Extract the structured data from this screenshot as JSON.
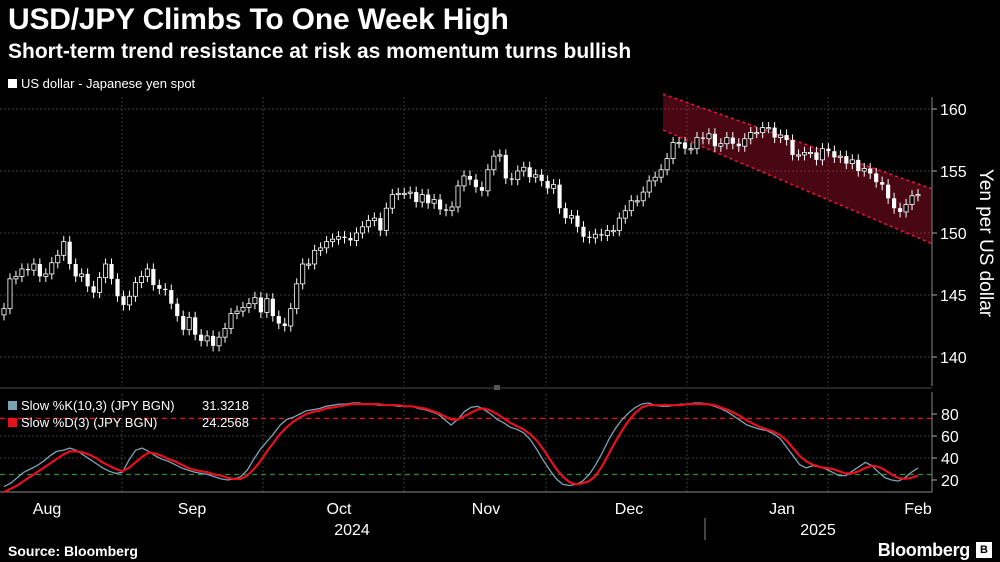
{
  "title": "USD/JPY Climbs To One Week High",
  "subtitle": "Short-term trend resistance at risk as momentum turns bullish",
  "footer": {
    "source": "Source: Bloomberg",
    "brand": "Bloomberg"
  },
  "colors": {
    "background": "#000000",
    "up_candle": "#ffffff",
    "down_candle": "#ffffff",
    "channel": "#e0163a",
    "stoch_k": "#7aa3b5",
    "stoch_d": "#e8101f",
    "level_80": "#e8101f",
    "level_20": "#2e8b2e",
    "grid": "#3a3a3a"
  },
  "chart_data": [
    {
      "type": "candlestick",
      "legend": [
        "US dollar - Japanese yen spot"
      ],
      "ylabel": "Yen per US dollar",
      "ylim": [
        137,
        162
      ],
      "yticks": [
        140,
        145,
        150,
        155,
        160
      ],
      "grid": true,
      "y_axis_side": "right",
      "close": [
        143.9,
        146.3,
        146.5,
        147.1,
        147.0,
        147.5,
        146.5,
        146.7,
        147.6,
        148.2,
        149.3,
        147.5,
        146.5,
        146.7,
        145.7,
        145.2,
        146.4,
        147.5,
        146.3,
        144.9,
        144.2,
        144.9,
        146.0,
        146.5,
        147.1,
        145.8,
        145.5,
        145.4,
        144.3,
        143.3,
        142.2,
        143.2,
        141.8,
        141.3,
        141.7,
        140.9,
        141.6,
        142.3,
        143.5,
        143.7,
        144.0,
        144.3,
        144.8,
        143.6,
        144.7,
        143.3,
        142.7,
        142.5,
        143.9,
        145.9,
        147.5,
        147.5,
        148.6,
        148.8,
        149.3,
        149.5,
        149.7,
        149.6,
        149.4,
        150.0,
        150.5,
        151.0,
        151.2,
        150.2,
        152.0,
        153.1,
        153.2,
        153.2,
        153.3,
        152.5,
        153.1,
        152.4,
        152.7,
        151.9,
        151.8,
        152.1,
        153.8,
        154.6,
        154.3,
        153.7,
        153.4,
        155.1,
        156.2,
        156.3,
        154.4,
        154.3,
        155.0,
        155.3,
        154.5,
        154.7,
        154.2,
        153.6,
        153.9,
        152.0,
        151.2,
        151.4,
        150.5,
        149.7,
        149.6,
        149.9,
        149.8,
        150.2,
        150.2,
        151.2,
        151.8,
        152.6,
        152.6,
        153.3,
        154.2,
        154.5,
        155.1,
        156.0,
        157.3,
        157.3,
        156.8,
        156.8,
        157.7,
        157.6,
        158.0,
        157.0,
        157.2,
        157.7,
        157.2,
        157.0,
        157.6,
        158.1,
        158.1,
        158.5,
        158.5,
        157.7,
        157.9,
        157.5,
        156.3,
        156.3,
        156.5,
        156.5,
        155.9,
        156.8,
        156.6,
        156.1,
        156.2,
        155.6,
        155.9,
        155.0,
        155.2,
        154.8,
        154.1,
        153.9,
        152.8,
        152.0,
        151.7,
        152.3,
        153.0,
        153.1
      ],
      "open": [
        143.4,
        143.9,
        146.3,
        146.5,
        147.1,
        147.0,
        147.5,
        146.5,
        146.7,
        147.6,
        148.2,
        149.3,
        147.5,
        146.5,
        146.7,
        145.7,
        145.2,
        146.4,
        147.5,
        146.3,
        144.9,
        144.2,
        144.9,
        146.0,
        146.5,
        147.1,
        145.8,
        145.5,
        145.4,
        144.3,
        143.3,
        142.2,
        143.2,
        141.8,
        141.3,
        141.7,
        140.9,
        141.6,
        142.3,
        143.5,
        143.7,
        144.0,
        144.3,
        144.8,
        143.6,
        144.7,
        143.3,
        142.7,
        142.5,
        143.9,
        145.9,
        147.5,
        147.5,
        148.6,
        148.8,
        149.3,
        149.5,
        149.7,
        149.6,
        149.4,
        150.0,
        150.5,
        151.0,
        151.2,
        150.2,
        152.0,
        153.1,
        153.2,
        153.2,
        153.3,
        152.5,
        153.1,
        152.4,
        152.7,
        151.9,
        151.8,
        152.1,
        153.8,
        154.6,
        154.3,
        153.7,
        153.4,
        155.1,
        156.2,
        156.3,
        154.4,
        154.3,
        155.0,
        155.3,
        154.5,
        154.7,
        154.2,
        153.6,
        153.9,
        152.0,
        151.2,
        151.4,
        150.5,
        149.7,
        149.6,
        149.9,
        149.8,
        150.2,
        150.2,
        151.2,
        151.8,
        152.6,
        152.6,
        153.3,
        154.2,
        154.5,
        155.1,
        156.0,
        157.3,
        157.3,
        156.8,
        156.8,
        157.7,
        157.6,
        158.0,
        157.0,
        157.2,
        157.7,
        157.2,
        157.0,
        157.6,
        158.1,
        158.1,
        158.5,
        158.5,
        157.7,
        157.9,
        157.5,
        156.3,
        156.3,
        156.5,
        156.5,
        155.9,
        156.8,
        156.6,
        156.1,
        156.2,
        155.6,
        155.9,
        155.0,
        155.2,
        154.8,
        154.1,
        153.9,
        152.8,
        152.0,
        151.7,
        152.3,
        153.0
      ]
    },
    {
      "type": "line",
      "series": [
        {
          "name": "Slow %K(10,3) (JPY BGN)",
          "last": "31.3218",
          "values": [
            14,
            17,
            22,
            27,
            30,
            33,
            37,
            42,
            46,
            47,
            49,
            47,
            43,
            39,
            35,
            31,
            28,
            26,
            27,
            38,
            47,
            49,
            46,
            42,
            39,
            37,
            34,
            31,
            29,
            27,
            26,
            25,
            23,
            21,
            20,
            21,
            23,
            29,
            39,
            48,
            55,
            62,
            70,
            75,
            77,
            80,
            83,
            84,
            85,
            87,
            88,
            89,
            89,
            90,
            90,
            89,
            89,
            88,
            88,
            88,
            87,
            87,
            87,
            85,
            84,
            82,
            80,
            75,
            70,
            75,
            82,
            86,
            87,
            84,
            80,
            75,
            72,
            68,
            66,
            63,
            57,
            48,
            38,
            29,
            21,
            16,
            15,
            16,
            19,
            25,
            34,
            45,
            57,
            67,
            75,
            81,
            86,
            89,
            90,
            88,
            87,
            87,
            88,
            89,
            89,
            90,
            90,
            89,
            87,
            85,
            82,
            78,
            74,
            70,
            68,
            66,
            65,
            62,
            58,
            50,
            42,
            34,
            31,
            33,
            32,
            30,
            27,
            24,
            24,
            28,
            32,
            36,
            33,
            27,
            22,
            20,
            19,
            22,
            27,
            31
          ]
        },
        {
          "name": "Slow %D(3) (JPY BGN)",
          "last": "24.2568",
          "values": [
            9,
            12,
            15,
            19,
            23,
            27,
            31,
            35,
            39,
            43,
            46,
            46,
            45,
            43,
            40,
            36,
            33,
            30,
            28,
            31,
            36,
            41,
            45,
            44,
            42,
            39,
            37,
            34,
            31,
            29,
            28,
            27,
            25,
            24,
            22,
            21,
            21,
            24,
            30,
            37,
            46,
            54,
            62,
            68,
            73,
            77,
            80,
            82,
            83,
            85,
            86,
            87,
            88,
            89,
            89,
            89,
            89,
            89,
            88,
            88,
            88,
            87,
            87,
            86,
            85,
            83,
            81,
            78,
            75,
            75,
            78,
            81,
            84,
            85,
            83,
            80,
            76,
            72,
            69,
            66,
            62,
            56,
            48,
            39,
            30,
            23,
            18,
            16,
            17,
            19,
            24,
            33,
            44,
            55,
            65,
            74,
            81,
            86,
            88,
            88,
            88,
            88,
            88,
            88,
            89,
            89,
            89,
            89,
            88,
            86,
            84,
            81,
            78,
            74,
            71,
            68,
            66,
            64,
            61,
            56,
            49,
            42,
            37,
            34,
            32,
            31,
            30,
            28,
            26,
            26,
            28,
            31,
            33,
            32,
            29,
            25,
            22,
            21,
            22,
            24
          ]
        }
      ],
      "ylim": [
        0,
        100
      ],
      "yticks": [
        20,
        40,
        60,
        80
      ],
      "reference_lines": [
        80,
        20
      ],
      "grid": true
    }
  ],
  "x_axis": {
    "month_labels": [
      "Aug",
      "Sep",
      "Oct",
      "Nov",
      "Dec",
      "Jan",
      "Feb"
    ],
    "year_labels": [
      "2024",
      "2025"
    ]
  }
}
